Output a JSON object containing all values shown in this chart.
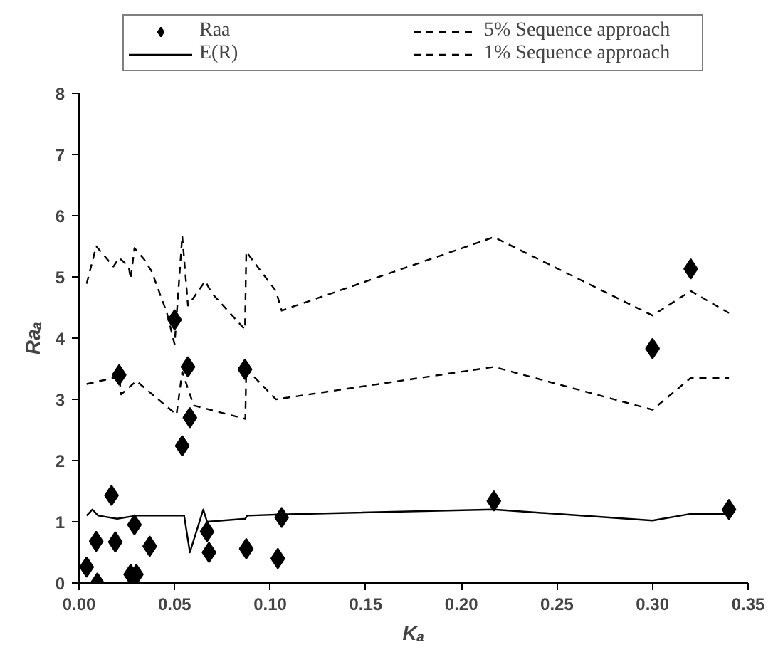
{
  "chart_data": {
    "type": "scatter",
    "xlabel": "Kₐ",
    "ylabel": "Raₐ",
    "xlim": [
      0,
      0.35
    ],
    "xticks": [
      {
        "value": 0,
        "label": "0.00"
      },
      {
        "value": 0.05,
        "label": "0.05"
      },
      {
        "value": 0.1,
        "label": "0.10"
      },
      {
        "value": 0.15,
        "label": "0.15"
      },
      {
        "value": 0.2,
        "label": "0.20"
      },
      {
        "value": 0.25,
        "label": "0.25"
      },
      {
        "value": 0.3,
        "label": "0.30"
      },
      {
        "value": 0.35,
        "label": "0.35"
      }
    ],
    "ylim": [
      0,
      8
    ],
    "yticks": [
      0,
      1,
      2,
      3,
      4,
      5,
      6,
      7,
      8
    ],
    "grid": false,
    "legend": "top",
    "series": [
      {
        "name": "Raa",
        "marker": "diamond",
        "color": "#000000",
        "x": [
          0.004,
          0.009,
          0.0096,
          0.017,
          0.019,
          0.029,
          0.027,
          0.03,
          0.037,
          0.054,
          0.058,
          0.067,
          0.068,
          0.0875,
          0.104,
          0.106,
          0.05,
          0.057,
          0.021,
          0.0868,
          0.217,
          0.34,
          0.3,
          0.32
        ],
        "values": [
          0.26,
          0.68,
          0.0,
          1.43,
          0.67,
          0.95,
          0.14,
          0.14,
          0.6,
          2.24,
          2.7,
          0.84,
          0.5,
          0.56,
          0.4,
          1.07,
          4.3,
          3.53,
          3.4,
          3.49,
          1.34,
          1.2,
          3.83,
          5.13
        ]
      },
      {
        "name": "E(R)",
        "type": "line",
        "line_style": "solid",
        "color": "#000000",
        "x": [
          0.004,
          0.007,
          0.01,
          0.02,
          0.03,
          0.055,
          0.058,
          0.065,
          0.067,
          0.087,
          0.088,
          0.105,
          0.217,
          0.3,
          0.32,
          0.34
        ],
        "values": [
          1.1,
          1.2,
          1.1,
          1.05,
          1.1,
          1.1,
          0.5,
          1.2,
          1.0,
          1.05,
          1.1,
          1.12,
          1.2,
          1.02,
          1.13,
          1.13
        ]
      },
      {
        "name": "5% Sequence approach",
        "type": "line",
        "line_style": "dashed",
        "color": "#000000",
        "x": [
          0.004,
          0.018,
          0.021,
          0.022,
          0.03,
          0.051,
          0.054,
          0.06,
          0.087,
          0.0875,
          0.103,
          0.217,
          0.3,
          0.32,
          0.34
        ],
        "values": [
          3.25,
          3.35,
          3.4,
          3.08,
          3.3,
          2.75,
          3.45,
          2.9,
          2.68,
          3.5,
          3.0,
          3.53,
          2.83,
          3.35,
          3.35
        ]
      },
      {
        "name": "1% Sequence approach",
        "type": "line",
        "line_style": "dashed",
        "color": "#000000",
        "x": [
          0.004,
          0.009,
          0.018,
          0.021,
          0.026,
          0.027,
          0.029,
          0.034,
          0.038,
          0.046,
          0.05,
          0.054,
          0.057,
          0.066,
          0.0696,
          0.0868,
          0.0875,
          0.103,
          0.106,
          0.217,
          0.3,
          0.32,
          0.34
        ],
        "values": [
          4.89,
          5.5,
          5.17,
          5.31,
          5.17,
          4.97,
          5.47,
          5.29,
          5.09,
          4.41,
          3.9,
          5.67,
          4.53,
          4.93,
          4.73,
          4.14,
          5.41,
          4.77,
          4.45,
          5.65,
          4.37,
          4.77,
          4.41
        ]
      }
    ]
  }
}
